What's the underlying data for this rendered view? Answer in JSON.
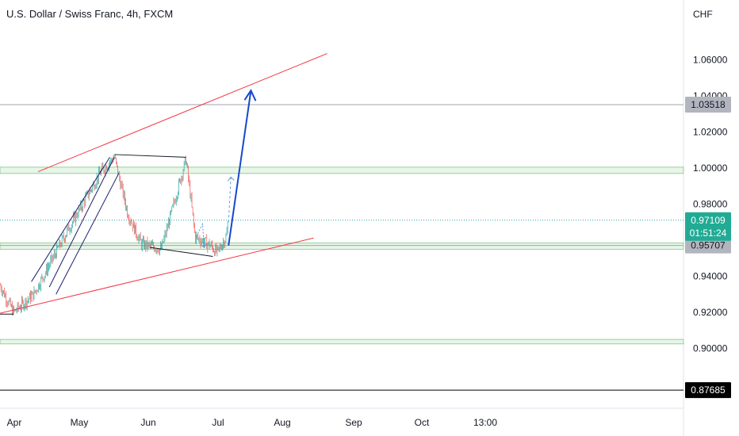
{
  "header": {
    "title": "U.S. Dollar / Swiss Franc, 4h, FXCM"
  },
  "price_axis": {
    "currency": "CHF",
    "ticks": [
      "1.06000",
      "1.04000",
      "1.02000",
      "1.00000",
      "0.98000",
      "0.94000",
      "0.92000",
      "0.90000"
    ],
    "tick_values": [
      1.06,
      1.04,
      1.02,
      1.0,
      0.98,
      0.94,
      0.92,
      0.9
    ]
  },
  "time_axis": {
    "labels": [
      "Apr",
      "May",
      "Jun",
      "Jul",
      "Aug",
      "Sep",
      "Oct",
      "13:00"
    ]
  },
  "tags": {
    "level_top": {
      "value": "1.03518",
      "price": 1.03518,
      "bg": "#b2b5be",
      "color": "#131722"
    },
    "current": {
      "value": "0.97109",
      "countdown": "01:51:24",
      "price": 0.97109,
      "bg": "#22ab94",
      "color": "#ffffff"
    },
    "level_support": {
      "value": "0.95707",
      "price": 0.95707,
      "bg": "#b2b5be",
      "color": "#131722"
    },
    "level_bottom": {
      "value": "0.87685",
      "price": 0.87685,
      "bg": "#000000",
      "color": "#ffffff"
    }
  },
  "colors": {
    "up_candle": "#26a69a",
    "down_candle": "#ef5350",
    "trendline": "#f23645",
    "zone_fill": "#e8f5e9",
    "zone_border": "#81c784",
    "projection_arrow": "#1848cc",
    "small_arrow": "#5b9bd5",
    "channel": "#1f1f6b"
  },
  "chart_data": {
    "type": "candlestick",
    "symbol": "USDCHF",
    "timeframe": "4h",
    "ylim": [
      0.86,
      1.075
    ],
    "support_zones": [
      {
        "low": 0.997,
        "high": 1.0005
      },
      {
        "low": 0.955,
        "high": 0.9585
      },
      {
        "low": 0.9025,
        "high": 0.905
      }
    ],
    "horizontal_levels": [
      1.03518,
      0.95707,
      0.87685
    ],
    "path_points": [
      [
        "Mar 26",
        0.935
      ],
      [
        "Apr 1",
        0.92
      ],
      [
        "Apr 10",
        0.93
      ],
      [
        "Apr 25",
        0.965
      ],
      [
        "May 10",
        0.998
      ],
      [
        "May 16",
        1.006
      ],
      [
        "May 22",
        0.975
      ],
      [
        "May 28",
        0.958
      ],
      [
        "Jun 6",
        0.955
      ],
      [
        "Jun 12",
        0.982
      ],
      [
        "Jun 17",
        1.005
      ],
      [
        "Jun 19",
        0.985
      ],
      [
        "Jun 21",
        0.962
      ],
      [
        "Jun 28",
        0.957
      ],
      [
        "Jul 1",
        0.953
      ],
      [
        "Jul 5",
        0.962
      ],
      [
        "Jul 6",
        0.971
      ]
    ],
    "projection": {
      "from": [
        "Jul 6",
        0.957
      ],
      "to": [
        "Jul 16",
        1.043
      ]
    }
  }
}
